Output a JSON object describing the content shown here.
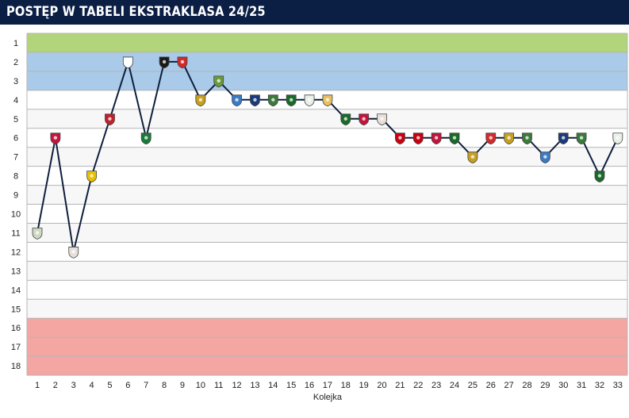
{
  "header": {
    "title": "POSTĘP W TABELI EKSTRAKLASA 24/25"
  },
  "colors": {
    "header_bg": "#0b1f45",
    "row_light": "#f7f7f7",
    "row_white": "#ffffff",
    "zone_champion": "#b2d47a",
    "zone_europe": "#a9cae8",
    "zone_relegation": "#f4a6a2",
    "line": "#0f1f3d",
    "gridline": "#b5b5b5"
  },
  "chart_data": {
    "type": "line",
    "title": "POSTĘP W TABELI EKSTRAKLASA 24/25",
    "xlabel": "Kolejka",
    "ylabel": "",
    "x": [
      1,
      2,
      3,
      4,
      5,
      6,
      7,
      8,
      9,
      10,
      11,
      12,
      13,
      14,
      15,
      16,
      17,
      18,
      19,
      20,
      21,
      22,
      23,
      24,
      25,
      26,
      27,
      28,
      29,
      30,
      31,
      32,
      33
    ],
    "y_ticks": [
      1,
      2,
      3,
      4,
      5,
      6,
      7,
      8,
      9,
      10,
      11,
      12,
      13,
      14,
      15,
      16,
      17,
      18
    ],
    "ylim": [
      1,
      18
    ],
    "y_inverted": true,
    "zones": [
      {
        "name": "champion",
        "from": 1,
        "to": 1,
        "color": "#b2d47a"
      },
      {
        "name": "europe",
        "from": 2,
        "to": 3,
        "color": "#a9cae8"
      },
      {
        "name": "relegation",
        "from": 16,
        "to": 18,
        "color": "#f4a6a2"
      }
    ],
    "series": [
      {
        "values": [
          11,
          6,
          12,
          8,
          5,
          2,
          6,
          2,
          2,
          4,
          3,
          4,
          4,
          4,
          4,
          4,
          4,
          5,
          5,
          5,
          6,
          6,
          6,
          6,
          7,
          6,
          6,
          6,
          7,
          6,
          6,
          8,
          6
        ],
        "marker_colors": [
          "#cfd8c0",
          "#c4143c",
          "#e8e0d8",
          "#e8c000",
          "#c0202a",
          "#ffffff",
          "#1a7a3a",
          "#1a1a1a",
          "#d22a2a",
          "#c8a020",
          "#6a9a3a",
          "#3a7ac8",
          "#1a3a7a",
          "#3a7a3a",
          "#1a6a2a",
          "#e8f0e8",
          "#e8c060",
          "#1a6a2a",
          "#c4143c",
          "#e8e0d8",
          "#c80010",
          "#c80010",
          "#c4143c",
          "#1a6a2a",
          "#c8a020",
          "#d22a2a",
          "#c8a020",
          "#3a7a3a",
          "#3a7ac8",
          "#1a3a7a",
          "#3a7a3a",
          "#1a6a2a",
          "#e8f0e8"
        ]
      }
    ]
  }
}
